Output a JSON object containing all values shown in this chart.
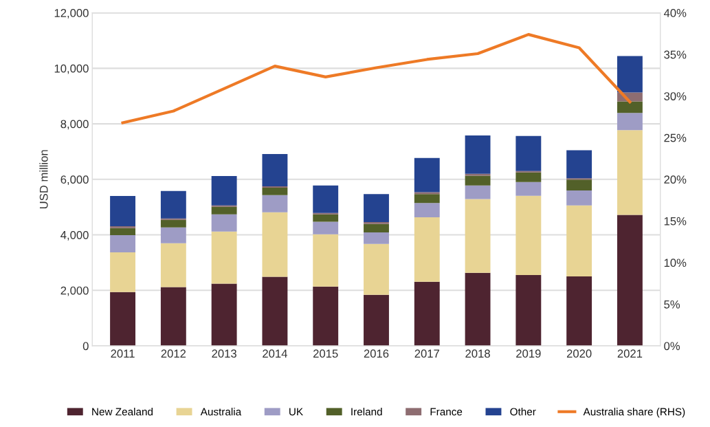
{
  "chart_data": {
    "type": "bar",
    "stacked": true,
    "ylabel": "USD million",
    "categories": [
      "2011",
      "2012",
      "2013",
      "2014",
      "2015",
      "2016",
      "2017",
      "2018",
      "2019",
      "2020",
      "2021"
    ],
    "series": [
      {
        "name": "New Zealand",
        "color": "#4e2430",
        "values": [
          1940,
          2120,
          2240,
          2490,
          2140,
          1840,
          2310,
          2630,
          2550,
          2500,
          4720
        ]
      },
      {
        "name": "Australia",
        "color": "#e8d494",
        "values": [
          1430,
          1580,
          1880,
          2320,
          1880,
          1830,
          2320,
          2660,
          2860,
          2560,
          3050
        ]
      },
      {
        "name": "UK",
        "color": "#9e9cc5",
        "values": [
          620,
          570,
          620,
          620,
          450,
          420,
          520,
          490,
          490,
          540,
          620
        ]
      },
      {
        "name": "Ireland",
        "color": "#526029",
        "values": [
          250,
          270,
          270,
          270,
          270,
          300,
          320,
          350,
          350,
          390,
          420
        ]
      },
      {
        "name": "France",
        "color": "#8e6d71",
        "values": [
          70,
          50,
          50,
          50,
          50,
          70,
          70,
          70,
          50,
          50,
          320
        ]
      },
      {
        "name": "Other",
        "color": "#244390",
        "values": [
          1090,
          990,
          1060,
          1160,
          990,
          1010,
          1230,
          1380,
          1260,
          1010,
          1310
        ]
      },
      {
        "name": "Australia share (RHS)",
        "type": "line",
        "axis": "y2",
        "color": "#ee7a26",
        "values": [
          26.8,
          28.2,
          30.9,
          33.6,
          32.3,
          33.4,
          34.4,
          35.1,
          37.4,
          35.8,
          29.3
        ]
      }
    ],
    "ylim": [
      0,
      12000
    ],
    "yticks": [
      0,
      {
        "value": 2000,
        "label": "2,000"
      },
      {
        "value": 4000,
        "label": "4,000"
      },
      {
        "value": 6000,
        "label": "6,000"
      },
      {
        "value": 8000,
        "label": "8,000"
      },
      {
        "value": 10000,
        "label": "10,000"
      },
      {
        "value": 12000,
        "label": "12,000"
      }
    ],
    "y2lim": [
      0,
      40
    ],
    "y2ticks": [
      {
        "value": 0,
        "label": "0%"
      },
      {
        "value": 5,
        "label": "5%"
      },
      {
        "value": 10,
        "label": "10%"
      },
      {
        "value": 15,
        "label": "15%"
      },
      {
        "value": 20,
        "label": "20%"
      },
      {
        "value": 25,
        "label": "25%"
      },
      {
        "value": 30,
        "label": "30%"
      },
      {
        "value": 35,
        "label": "35%"
      },
      {
        "value": 40,
        "label": "40%"
      }
    ],
    "grid": "y",
    "legend": "bottom"
  }
}
